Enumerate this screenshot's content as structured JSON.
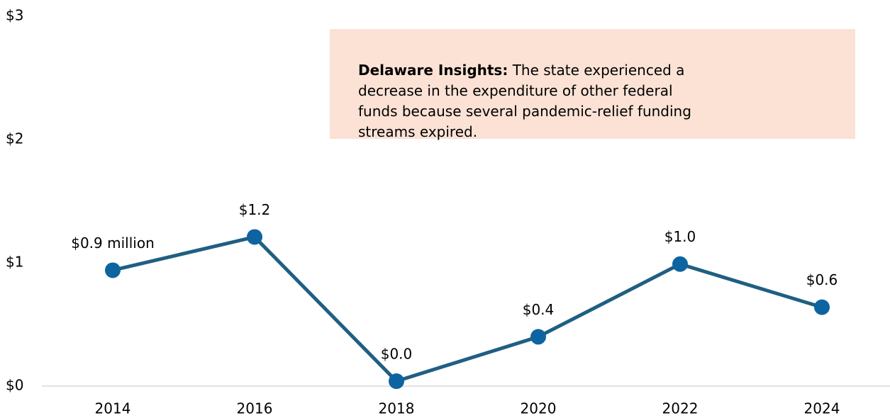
{
  "chart_data": {
    "type": "line",
    "categories": [
      "2014",
      "2016",
      "2018",
      "2020",
      "2022",
      "2024"
    ],
    "values": [
      0.94,
      1.21,
      0.04,
      0.4,
      0.99,
      0.64
    ],
    "value_labels": [
      "$0.9 million",
      "$1.2",
      "$0.0",
      "$0.4",
      "$1.0",
      "$0.6"
    ],
    "color": "#1f5f82",
    "marker_color": "#0e64a0",
    "ylim": [
      0,
      3
    ],
    "yticks": [
      {
        "value": 0,
        "label": "$0"
      },
      {
        "value": 1,
        "label": "$1"
      },
      {
        "value": 2,
        "label": "$2"
      },
      {
        "value": 3,
        "label": "$3"
      }
    ],
    "grid": false,
    "annotation": {
      "label": "Delaware Insights:",
      "text": "The state experienced a decrease in the expenditure of other federal funds because several pandemic-relief funding streams expired."
    }
  }
}
